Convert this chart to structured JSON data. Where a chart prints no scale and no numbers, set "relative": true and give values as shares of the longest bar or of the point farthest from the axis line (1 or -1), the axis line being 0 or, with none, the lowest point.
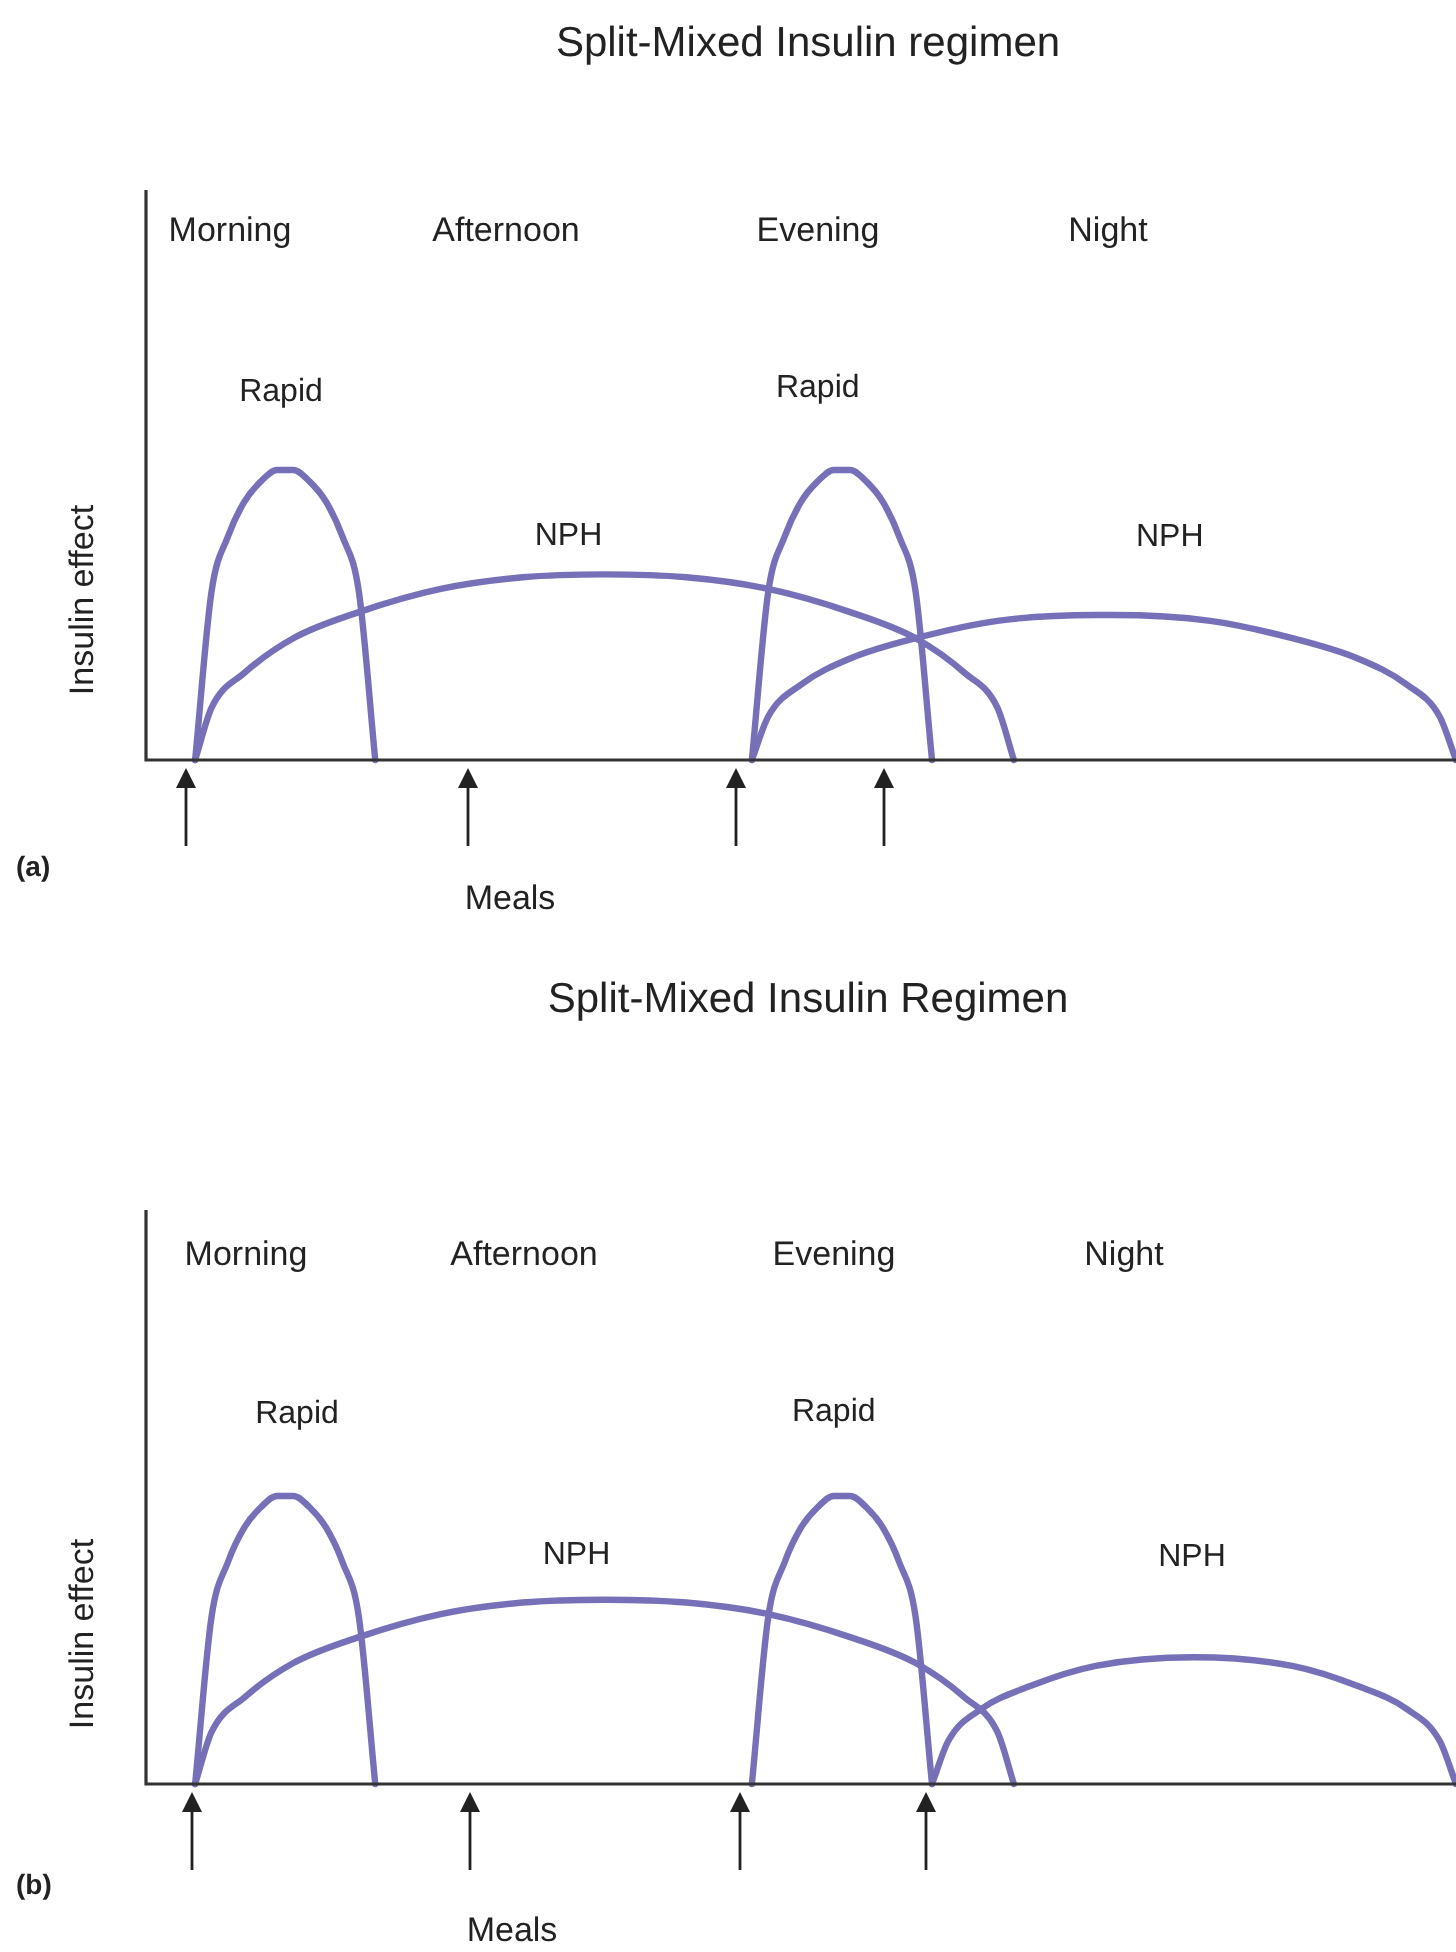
{
  "chart_data": [
    {
      "type": "line",
      "title": "Split-Mixed Insulin regimen",
      "ylabel": "Insulin effect",
      "annotations": [
        "Morning",
        "Afternoon",
        "Evening",
        "Night",
        "Meals",
        "(a)"
      ],
      "relative": true,
      "legend": false,
      "grid": false,
      "marker": "none",
      "line_style": "solid",
      "categories": [
        null,
        null,
        null,
        null,
        null,
        null,
        null,
        null,
        null,
        null,
        null,
        null,
        null,
        null,
        null,
        null,
        null,
        null,
        null,
        null,
        null,
        null,
        null,
        null,
        null,
        null,
        null,
        null,
        null,
        null,
        null,
        null,
        null,
        null,
        null,
        null,
        null,
        null,
        null,
        null,
        null,
        null,
        null,
        null,
        null,
        null,
        null,
        null,
        null,
        null,
        null,
        null,
        null,
        null,
        null,
        null,
        null,
        null,
        null,
        null,
        null,
        null,
        null,
        null,
        null,
        null,
        null,
        null,
        null,
        null,
        null,
        null,
        null,
        null,
        null,
        null,
        null,
        null,
        null,
        null,
        null
      ],
      "series": [
        {
          "name": "Rapid",
          "color": "#7670b8",
          "values": [
            null,
            null,
            null,
            0,
            0.58,
            0.77,
            0.89,
            0.96,
            1,
            1,
            0.96,
            0.89,
            0.77,
            0.58,
            0,
            null,
            null,
            null,
            null,
            null,
            null,
            null,
            null,
            null,
            null,
            null,
            null,
            null,
            null,
            null,
            null,
            null,
            null,
            null,
            null,
            null,
            null,
            null,
            null,
            null,
            null,
            null,
            null,
            null,
            null,
            null,
            null,
            null,
            null,
            null,
            null,
            null,
            null,
            null,
            null,
            null,
            null,
            null,
            null,
            null,
            null,
            null,
            null,
            null,
            null,
            null,
            null,
            null,
            null,
            null,
            null,
            null,
            null,
            null,
            null,
            null,
            null,
            null,
            null,
            null,
            null
          ]
        },
        {
          "name": "NPH",
          "color": "#7670b8",
          "values": [
            null,
            null,
            null,
            0,
            0.18,
            null,
            0.3,
            null,
            null,
            0.42,
            null,
            null,
            null,
            0.51,
            null,
            null,
            null,
            null,
            0.59,
            null,
            null,
            null,
            null,
            0.63,
            null,
            null,
            null,
            null,
            0.64,
            null,
            null,
            null,
            null,
            0.63,
            null,
            null,
            null,
            null,
            0.59,
            null,
            null,
            null,
            null,
            0.51,
            null,
            null,
            null,
            0.42,
            null,
            null,
            0.3,
            null,
            0.18,
            0,
            null,
            null,
            null,
            null,
            null,
            null,
            null,
            null,
            null,
            null,
            null,
            null,
            null,
            null,
            null,
            null,
            null,
            null,
            null,
            null,
            null,
            null,
            null,
            null,
            null,
            null,
            null
          ]
        },
        {
          "name": "Rapid",
          "color": "#7670b8",
          "values": [
            null,
            null,
            null,
            null,
            null,
            null,
            null,
            null,
            null,
            null,
            null,
            null,
            null,
            null,
            null,
            null,
            null,
            null,
            null,
            null,
            null,
            null,
            null,
            null,
            null,
            null,
            null,
            null,
            null,
            null,
            null,
            null,
            null,
            null,
            null,
            null,
            null,
            0,
            0.58,
            0.77,
            0.89,
            0.96,
            1,
            1,
            0.96,
            0.89,
            0.77,
            0.58,
            0,
            null,
            null,
            null,
            null,
            null,
            null,
            null,
            null,
            null,
            null,
            null,
            null,
            null,
            null,
            null,
            null,
            null,
            null,
            null,
            null,
            null,
            null,
            null,
            null,
            null,
            null,
            null,
            null,
            null,
            null,
            null,
            null
          ]
        },
        {
          "name": "NPH",
          "color": "#7670b8",
          "values": [
            null,
            null,
            null,
            null,
            null,
            null,
            null,
            null,
            null,
            null,
            null,
            null,
            null,
            null,
            null,
            null,
            null,
            null,
            null,
            null,
            null,
            null,
            null,
            null,
            null,
            null,
            null,
            null,
            null,
            null,
            null,
            null,
            null,
            null,
            null,
            null,
            null,
            0,
            0.15,
            null,
            0.26,
            null,
            null,
            0.35,
            null,
            null,
            null,
            0.42,
            null,
            null,
            null,
            null,
            0.48,
            null,
            null,
            null,
            null,
            null,
            0.5,
            0.5,
            null,
            null,
            null,
            null,
            null,
            0.48,
            null,
            null,
            null,
            null,
            0.42,
            null,
            null,
            null,
            0.35,
            null,
            null,
            0.26,
            null,
            0.15,
            0
          ]
        }
      ]
    },
    {
      "type": "line",
      "title": "Split-Mixed Insulin Regimen",
      "ylabel": "Insulin effect",
      "annotations": [
        "Morning",
        "Afternoon",
        "Evening",
        "Night",
        "Meals",
        "(b)"
      ],
      "relative": true,
      "legend": false,
      "grid": false,
      "marker": "none",
      "line_style": "solid",
      "categories": [
        null,
        null,
        null,
        null,
        null,
        null,
        null,
        null,
        null,
        null,
        null,
        null,
        null,
        null,
        null,
        null,
        null,
        null,
        null,
        null,
        null,
        null,
        null,
        null,
        null,
        null,
        null,
        null,
        null,
        null,
        null,
        null,
        null,
        null,
        null,
        null,
        null,
        null,
        null,
        null,
        null,
        null,
        null,
        null,
        null,
        null,
        null,
        null,
        null,
        null,
        null,
        null,
        null,
        null,
        null,
        null,
        null,
        null,
        null,
        null,
        null,
        null,
        null,
        null,
        null,
        null,
        null,
        null,
        null,
        null,
        null,
        null,
        null,
        null,
        null,
        null,
        null,
        null,
        null,
        null,
        null
      ],
      "series": [
        {
          "name": "Rapid",
          "color": "#7670b8",
          "values": [
            null,
            null,
            null,
            0,
            0.58,
            0.77,
            0.89,
            0.96,
            1,
            1,
            0.96,
            0.89,
            0.77,
            0.58,
            0,
            null,
            null,
            null,
            null,
            null,
            null,
            null,
            null,
            null,
            null,
            null,
            null,
            null,
            null,
            null,
            null,
            null,
            null,
            null,
            null,
            null,
            null,
            null,
            null,
            null,
            null,
            null,
            null,
            null,
            null,
            null,
            null,
            null,
            null,
            null,
            null,
            null,
            null,
            null,
            null,
            null,
            null,
            null,
            null,
            null,
            null,
            null,
            null,
            null,
            null,
            null,
            null,
            null,
            null,
            null,
            null,
            null,
            null,
            null,
            null,
            null,
            null,
            null,
            null,
            null,
            null
          ]
        },
        {
          "name": "NPH",
          "color": "#7670b8",
          "values": [
            null,
            null,
            null,
            0,
            0.18,
            null,
            0.3,
            null,
            null,
            0.42,
            null,
            null,
            null,
            0.51,
            null,
            null,
            null,
            null,
            0.59,
            null,
            null,
            null,
            null,
            0.63,
            null,
            null,
            null,
            null,
            0.64,
            null,
            null,
            null,
            null,
            0.63,
            null,
            null,
            null,
            null,
            0.59,
            null,
            null,
            null,
            null,
            0.51,
            null,
            null,
            null,
            0.42,
            null,
            null,
            0.3,
            null,
            0.18,
            0,
            null,
            null,
            null,
            null,
            null,
            null,
            null,
            null,
            null,
            null,
            null,
            null,
            null,
            null,
            null,
            null,
            null,
            null,
            null,
            null,
            null,
            null,
            null,
            null,
            null,
            null,
            null
          ]
        },
        {
          "name": "Rapid",
          "color": "#7670b8",
          "values": [
            null,
            null,
            null,
            null,
            null,
            null,
            null,
            null,
            null,
            null,
            null,
            null,
            null,
            null,
            null,
            null,
            null,
            null,
            null,
            null,
            null,
            null,
            null,
            null,
            null,
            null,
            null,
            null,
            null,
            null,
            null,
            null,
            null,
            null,
            null,
            null,
            null,
            0,
            0.58,
            0.77,
            0.89,
            0.96,
            1,
            1,
            0.96,
            0.89,
            0.77,
            0.58,
            0,
            null,
            null,
            null,
            null,
            null,
            null,
            null,
            null,
            null,
            null,
            null,
            null,
            null,
            null,
            null,
            null,
            null,
            null,
            null,
            null,
            null,
            null,
            null,
            null,
            null,
            null,
            null,
            null,
            null,
            null,
            null,
            null
          ]
        },
        {
          "name": "NPH",
          "color": "#7670b8",
          "values": [
            null,
            null,
            null,
            null,
            null,
            null,
            null,
            null,
            null,
            null,
            null,
            null,
            null,
            null,
            null,
            null,
            null,
            null,
            null,
            null,
            null,
            null,
            null,
            null,
            null,
            null,
            null,
            null,
            null,
            null,
            null,
            null,
            null,
            null,
            null,
            null,
            null,
            null,
            null,
            null,
            null,
            null,
            null,
            null,
            null,
            null,
            null,
            null,
            0,
            0.15,
            null,
            0.26,
            null,
            null,
            0.34,
            null,
            null,
            null,
            0.41,
            null,
            null,
            null,
            null,
            null,
            0.44,
            null,
            null,
            null,
            null,
            null,
            0.41,
            null,
            null,
            null,
            0.34,
            null,
            null,
            0.26,
            null,
            0.15,
            0
          ]
        }
      ]
    }
  ]
}
